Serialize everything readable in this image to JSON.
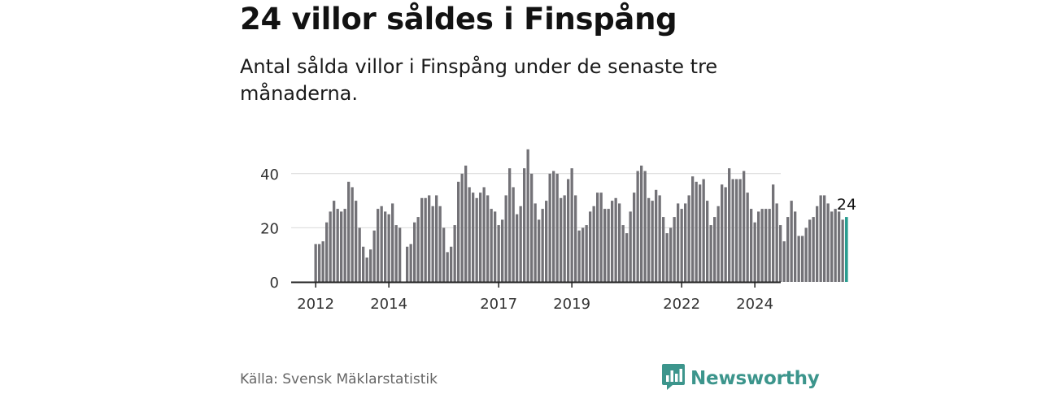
{
  "header": {
    "title": "24 villor såldes i Finspång",
    "subtitle": "Antal sålda villor i Finspång under de senaste tre månaderna."
  },
  "footer": {
    "source": "Källa: Svensk Mäklarstatistik",
    "brand": "Newsworthy",
    "brand_icon": "bar-chart-logo-icon",
    "brand_color": "#3c958c"
  },
  "chart_data": {
    "type": "bar",
    "title": "24 villor såldes i Finspång",
    "xlabel": "",
    "ylabel": "",
    "ylim": [
      0,
      48
    ],
    "yticks": [
      0,
      20,
      40
    ],
    "x_tick_labels": [
      "2012",
      "2014",
      "2017",
      "2019",
      "2022",
      "2024"
    ],
    "x_tick_index": [
      0,
      20,
      50,
      70,
      100,
      120
    ],
    "grid": true,
    "bar_color": "#737277",
    "highlight_color": "#2a9d90",
    "highlight_label": "24",
    "values": [
      14,
      14,
      15,
      22,
      26,
      30,
      27,
      26,
      27,
      37,
      35,
      30,
      20,
      13,
      9,
      12,
      19,
      27,
      28,
      26,
      25,
      29,
      21,
      20,
      null,
      13,
      14,
      22,
      24,
      31,
      31,
      32,
      28,
      32,
      28,
      20,
      11,
      13,
      21,
      37,
      40,
      43,
      35,
      33,
      31,
      33,
      35,
      32,
      27,
      26,
      21,
      23,
      32,
      42,
      35,
      25,
      28,
      42,
      49,
      40,
      29,
      23,
      27,
      30,
      40,
      41,
      40,
      31,
      32,
      38,
      42,
      32,
      19,
      20,
      21,
      26,
      28,
      33,
      33,
      27,
      27,
      30,
      31,
      29,
      21,
      18,
      26,
      33,
      41,
      43,
      41,
      31,
      30,
      34,
      32,
      24,
      18,
      20,
      24,
      29,
      27,
      29,
      32,
      39,
      37,
      36,
      38,
      30,
      21,
      24,
      28,
      36,
      35,
      42,
      38,
      38,
      38,
      41,
      33,
      27,
      22,
      26,
      27,
      27,
      27,
      36,
      29,
      21,
      15,
      24,
      30,
      26,
      17,
      17,
      20,
      23,
      24,
      28,
      32,
      32,
      29,
      26,
      27,
      26,
      23,
      24
    ]
  }
}
